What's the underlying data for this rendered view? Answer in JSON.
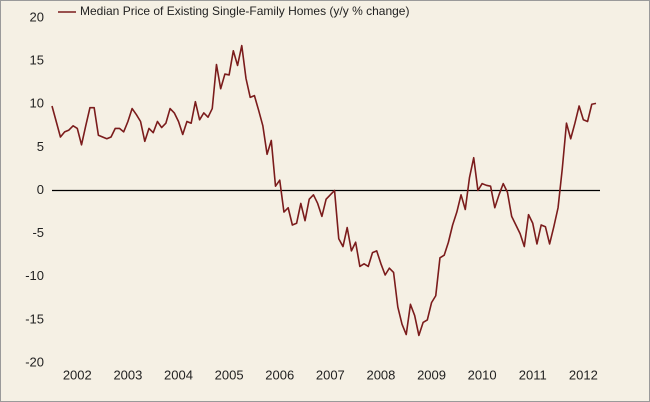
{
  "chart_data": {
    "type": "line",
    "categories": [
      null,
      null,
      null,
      null,
      null,
      null,
      "2002",
      null,
      null,
      null,
      null,
      null,
      null,
      null,
      null,
      null,
      null,
      null,
      "2003",
      null,
      null,
      null,
      null,
      null,
      null,
      null,
      null,
      null,
      null,
      null,
      "2004",
      null,
      null,
      null,
      null,
      null,
      null,
      null,
      null,
      null,
      null,
      null,
      "2005",
      null,
      null,
      null,
      null,
      null,
      null,
      null,
      null,
      null,
      null,
      null,
      "2006",
      null,
      null,
      null,
      null,
      null,
      null,
      null,
      null,
      null,
      null,
      null,
      "2007",
      null,
      null,
      null,
      null,
      null,
      null,
      null,
      null,
      null,
      null,
      null,
      "2008",
      null,
      null,
      null,
      null,
      null,
      null,
      null,
      null,
      null,
      null,
      null,
      "2009",
      null,
      null,
      null,
      null,
      null,
      null,
      null,
      null,
      null,
      null,
      null,
      "2010",
      null,
      null,
      null,
      null,
      null,
      null,
      null,
      null,
      null,
      null,
      null,
      "2011",
      null,
      null,
      null,
      null,
      null,
      null,
      null,
      null,
      null,
      null,
      null,
      "2012",
      null,
      null,
      null
    ],
    "series": [
      {
        "name": "Median Price of Existing Single-Family Homes (y/y % change)",
        "color": "#7b1c1c",
        "values": [
          9.8,
          8,
          6.2,
          6.8,
          7,
          7.5,
          7.2,
          5.3,
          7.5,
          9.6,
          9.6,
          6.4,
          6.2,
          6,
          6.2,
          7.2,
          7.2,
          6.8,
          8,
          9.5,
          8.8,
          8,
          5.7,
          7.2,
          6.7,
          8,
          7.3,
          7.8,
          9.5,
          9,
          8,
          6.5,
          8,
          7.8,
          10.3,
          8.2,
          9,
          8.5,
          9.5,
          14.6,
          11.8,
          13.5,
          13.4,
          16.2,
          14.5,
          16.8,
          13,
          10.8,
          11,
          9.3,
          7.5,
          4.2,
          5.8,
          0.5,
          1.2,
          -2.5,
          -2,
          -4,
          -3.8,
          -1.5,
          -3.5,
          -1,
          -0.5,
          -1.5,
          -3,
          -1,
          -0.5,
          0,
          -5.6,
          -6.5,
          -4.3,
          -7,
          -6,
          -8.8,
          -8.5,
          -8.8,
          -7.2,
          -7,
          -8.5,
          -9.8,
          -9,
          -9.5,
          -13.5,
          -15.5,
          -16.7,
          -13.2,
          -14.5,
          -16.8,
          -15.3,
          -15,
          -13,
          -12.2,
          -7.8,
          -7.5,
          -6,
          -4,
          -2.5,
          -0.5,
          -2.2,
          1.5,
          3.8,
          0,
          0.8,
          0.6,
          0.5,
          -2,
          -0.5,
          0.8,
          -0.2,
          -3,
          -4,
          -5,
          -6.5,
          -2.8,
          -3.8,
          -6.2,
          -4,
          -4.2,
          -6.2,
          -4.2,
          -2,
          2.5,
          7.8,
          6,
          7.8,
          9.8,
          8.2,
          8,
          10,
          10.1
        ]
      }
    ],
    "ylim": [
      -20,
      20
    ],
    "yticks": [
      -20,
      -15,
      -10,
      -5,
      0,
      5,
      10,
      15,
      20
    ],
    "grid": false,
    "legend": "top-left"
  }
}
